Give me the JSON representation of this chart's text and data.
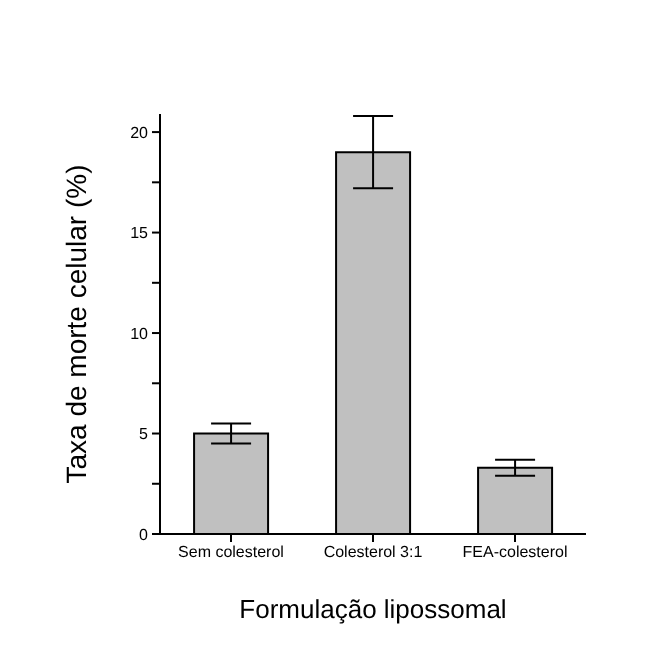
{
  "chart_data": {
    "type": "bar",
    "xlabel": "Formulação lipossomal",
    "ylabel": "Taxa de morte celular (%)",
    "categories": [
      "Sem colesterol",
      "Colesterol 3:1",
      "FEA-colesterol"
    ],
    "values": [
      5.0,
      19.0,
      3.3
    ],
    "errors": [
      0.5,
      1.8,
      0.4
    ],
    "color": "#c0c0c0",
    "ylim": [
      0,
      20.9
    ],
    "yticks": [
      0,
      {
        "value": 2.5,
        "label": null
      },
      5,
      {
        "value": 7.5,
        "label": null
      },
      10,
      {
        "value": 12.5,
        "label": null
      },
      15,
      {
        "value": 17.5,
        "label": null
      },
      20
    ],
    "grid": false,
    "legend": false
  }
}
